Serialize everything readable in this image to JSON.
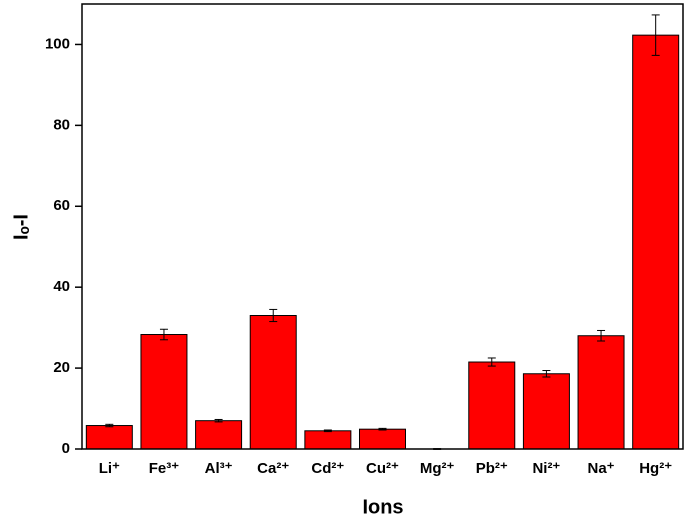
{
  "chart_data": {
    "type": "bar",
    "x_label": "Ions",
    "y_label": "Iₒ-I",
    "categories": [
      "Li⁺",
      "Fe³⁺",
      "Al³⁺",
      "Ca²⁺",
      "Cd²⁺",
      "Cu²⁺",
      "Mg²⁺",
      "Pb²⁺",
      "Ni²⁺",
      "Na⁺",
      "Hg²⁺"
    ],
    "values": [
      5.8,
      28.3,
      7.0,
      33.0,
      4.5,
      4.9,
      0,
      21.5,
      18.6,
      28.0,
      102.3
    ],
    "errors": [
      0.3,
      1.3,
      0.3,
      1.5,
      0.2,
      0.2,
      0.1,
      1.0,
      0.8,
      1.3,
      5.0
    ],
    "color": "#ff0000",
    "ylim": [
      0,
      110
    ],
    "yticks": [
      0,
      20,
      40,
      60,
      80,
      100
    ]
  }
}
